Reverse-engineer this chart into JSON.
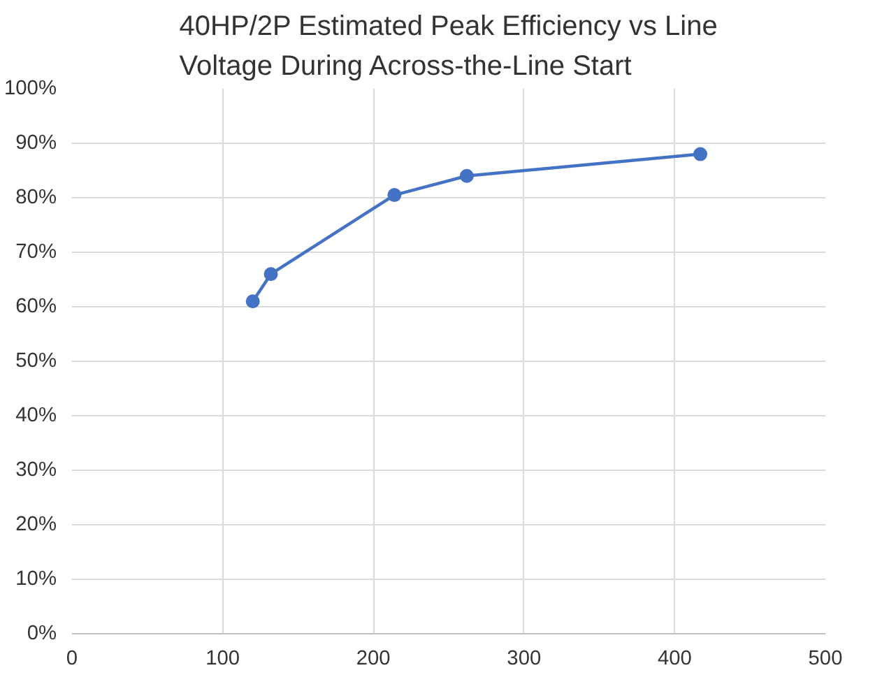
{
  "chart_data": {
    "type": "line",
    "title": "40HP/2P Estimated Peak Efficiency vs Line\nVoltage During Across-the-Line Start",
    "x": [
      120,
      132,
      214,
      262,
      417
    ],
    "series": [
      {
        "color": "#4472c4",
        "values": [
          61,
          66,
          80.5,
          84,
          88
        ]
      }
    ],
    "xlim": [
      0,
      500
    ],
    "xticks": [
      0,
      100,
      200,
      300,
      400,
      500
    ],
    "ylim": [
      0,
      100
    ],
    "yticks": [
      {
        "value": 0,
        "label": "0%"
      },
      {
        "value": 10,
        "label": "10%"
      },
      {
        "value": 20,
        "label": "20%"
      },
      {
        "value": 30,
        "label": "30%"
      },
      {
        "value": 40,
        "label": "40%"
      },
      {
        "value": 50,
        "label": "50%"
      },
      {
        "value": 60,
        "label": "60%"
      },
      {
        "value": 70,
        "label": "70%"
      },
      {
        "value": 80,
        "label": "80%"
      },
      {
        "value": 90,
        "label": "90%"
      },
      {
        "value": 100,
        "label": "100%"
      }
    ],
    "grid": true,
    "marker": "circle",
    "line_style": "solid"
  }
}
